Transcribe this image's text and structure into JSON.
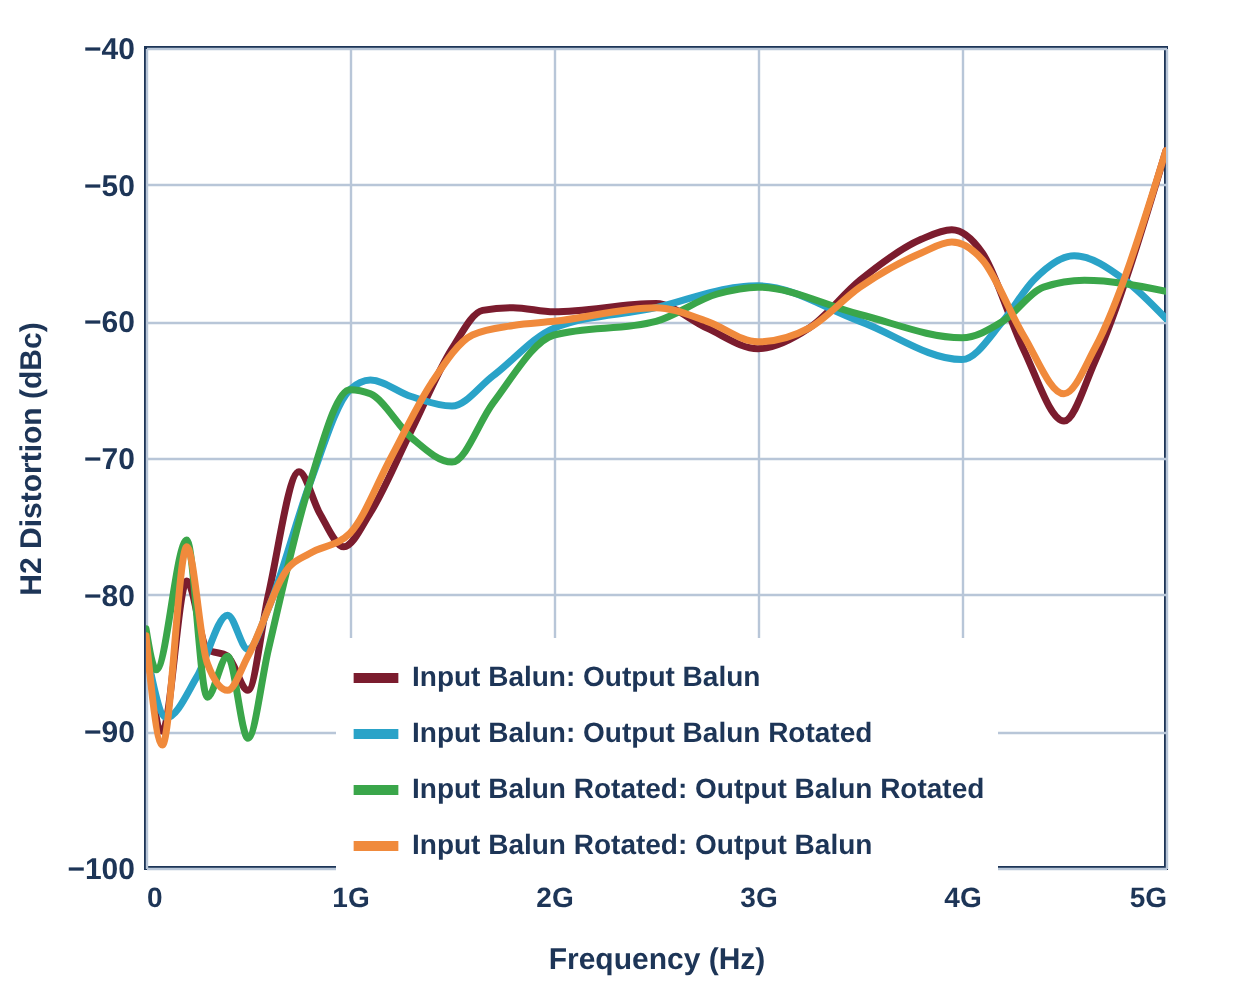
{
  "chart_data": {
    "type": "line",
    "xlabel": "Frequency (Hz)",
    "ylabel": "H2 Distortion (dBc)",
    "xlim": [
      0,
      5
    ],
    "xticks": [
      0,
      {
        "value": 1,
        "label": "1G"
      },
      {
        "value": 2,
        "label": "2G"
      },
      {
        "value": 3,
        "label": "3G"
      },
      {
        "value": 4,
        "label": "4G"
      },
      {
        "value": 5,
        "label": "5G"
      }
    ],
    "ylim": [
      -100,
      -40
    ],
    "yticks": [
      -100,
      -90,
      -80,
      -70,
      -60,
      -50,
      -40
    ],
    "grid": true,
    "legend": "bottom",
    "line_style": "solid",
    "series": [
      {
        "name": "Input Balun: Output Balun",
        "color": "#7b1c2e",
        "x": [
          0,
          0.08,
          0.2,
          0.3,
          0.4,
          0.5,
          0.6,
          0.75,
          0.85,
          0.97,
          1.1,
          1.3,
          1.5,
          1.65,
          1.8,
          2.0,
          2.5,
          2.75,
          3.0,
          3.25,
          3.5,
          3.8,
          3.95,
          4.1,
          4.3,
          4.5,
          4.65,
          5
        ],
        "values": [
          -83,
          -90,
          -79,
          -84,
          -84.5,
          -87,
          -80,
          -71,
          -74,
          -76.5,
          -74,
          -68,
          -62,
          -59.2,
          -59,
          -59.3,
          -58.7,
          -60.5,
          -62,
          -60.5,
          -57,
          -54,
          -53.3,
          -55,
          -62,
          -67.3,
          -63,
          -47.5
        ]
      },
      {
        "name": "Input Balun: Output Balun Rotated",
        "color": "#2aa3c8",
        "x": [
          0,
          0.1,
          0.25,
          0.4,
          0.5,
          0.6,
          0.8,
          1.0,
          1.1,
          1.3,
          1.5,
          1.7,
          2.0,
          2.5,
          2.9,
          3.0,
          3.5,
          4.0,
          4.2,
          4.35,
          4.55,
          4.8,
          5
        ],
        "values": [
          -84,
          -89,
          -86,
          -81.5,
          -84,
          -81,
          -72,
          -65,
          -64.3,
          -65.5,
          -66.2,
          -64,
          -60.5,
          -59,
          -57.5,
          -57.4,
          -60,
          -62.8,
          -60,
          -57,
          -55.2,
          -57,
          -59.8
        ]
      },
      {
        "name": "Input Balun Rotated: Output Balun Rotated",
        "color": "#3aa64a",
        "x": [
          0,
          0.05,
          0.2,
          0.3,
          0.4,
          0.5,
          0.6,
          0.8,
          1.0,
          1.1,
          1.3,
          1.5,
          1.7,
          2.0,
          2.5,
          2.8,
          3.0,
          3.5,
          4.0,
          4.2,
          4.4,
          4.6,
          5
        ],
        "values": [
          -82.5,
          -85.5,
          -76,
          -87.5,
          -84.5,
          -90.5,
          -84,
          -72,
          -65,
          -65.3,
          -68.5,
          -70.3,
          -66,
          -61,
          -60,
          -58,
          -57.5,
          -59.5,
          -61.2,
          -60,
          -57.5,
          -57,
          -57.8
        ]
      },
      {
        "name": "Input Balun Rotated: Output Balun",
        "color": "#f08a3c",
        "x": [
          0,
          0.08,
          0.2,
          0.3,
          0.4,
          0.5,
          0.7,
          0.8,
          1.0,
          1.2,
          1.4,
          1.6,
          1.8,
          2.0,
          2.5,
          2.75,
          3.0,
          3.25,
          3.5,
          3.8,
          3.95,
          4.1,
          4.3,
          4.5,
          4.65,
          5
        ],
        "values": [
          -83,
          -91,
          -76.5,
          -85,
          -87,
          -84.5,
          -78,
          -77,
          -75.5,
          -70,
          -64.5,
          -61,
          -60.3,
          -60,
          -59,
          -60,
          -61.5,
          -60.5,
          -57.5,
          -55,
          -54.2,
          -55.5,
          -61,
          -65.3,
          -62,
          -47.5
        ]
      }
    ]
  }
}
